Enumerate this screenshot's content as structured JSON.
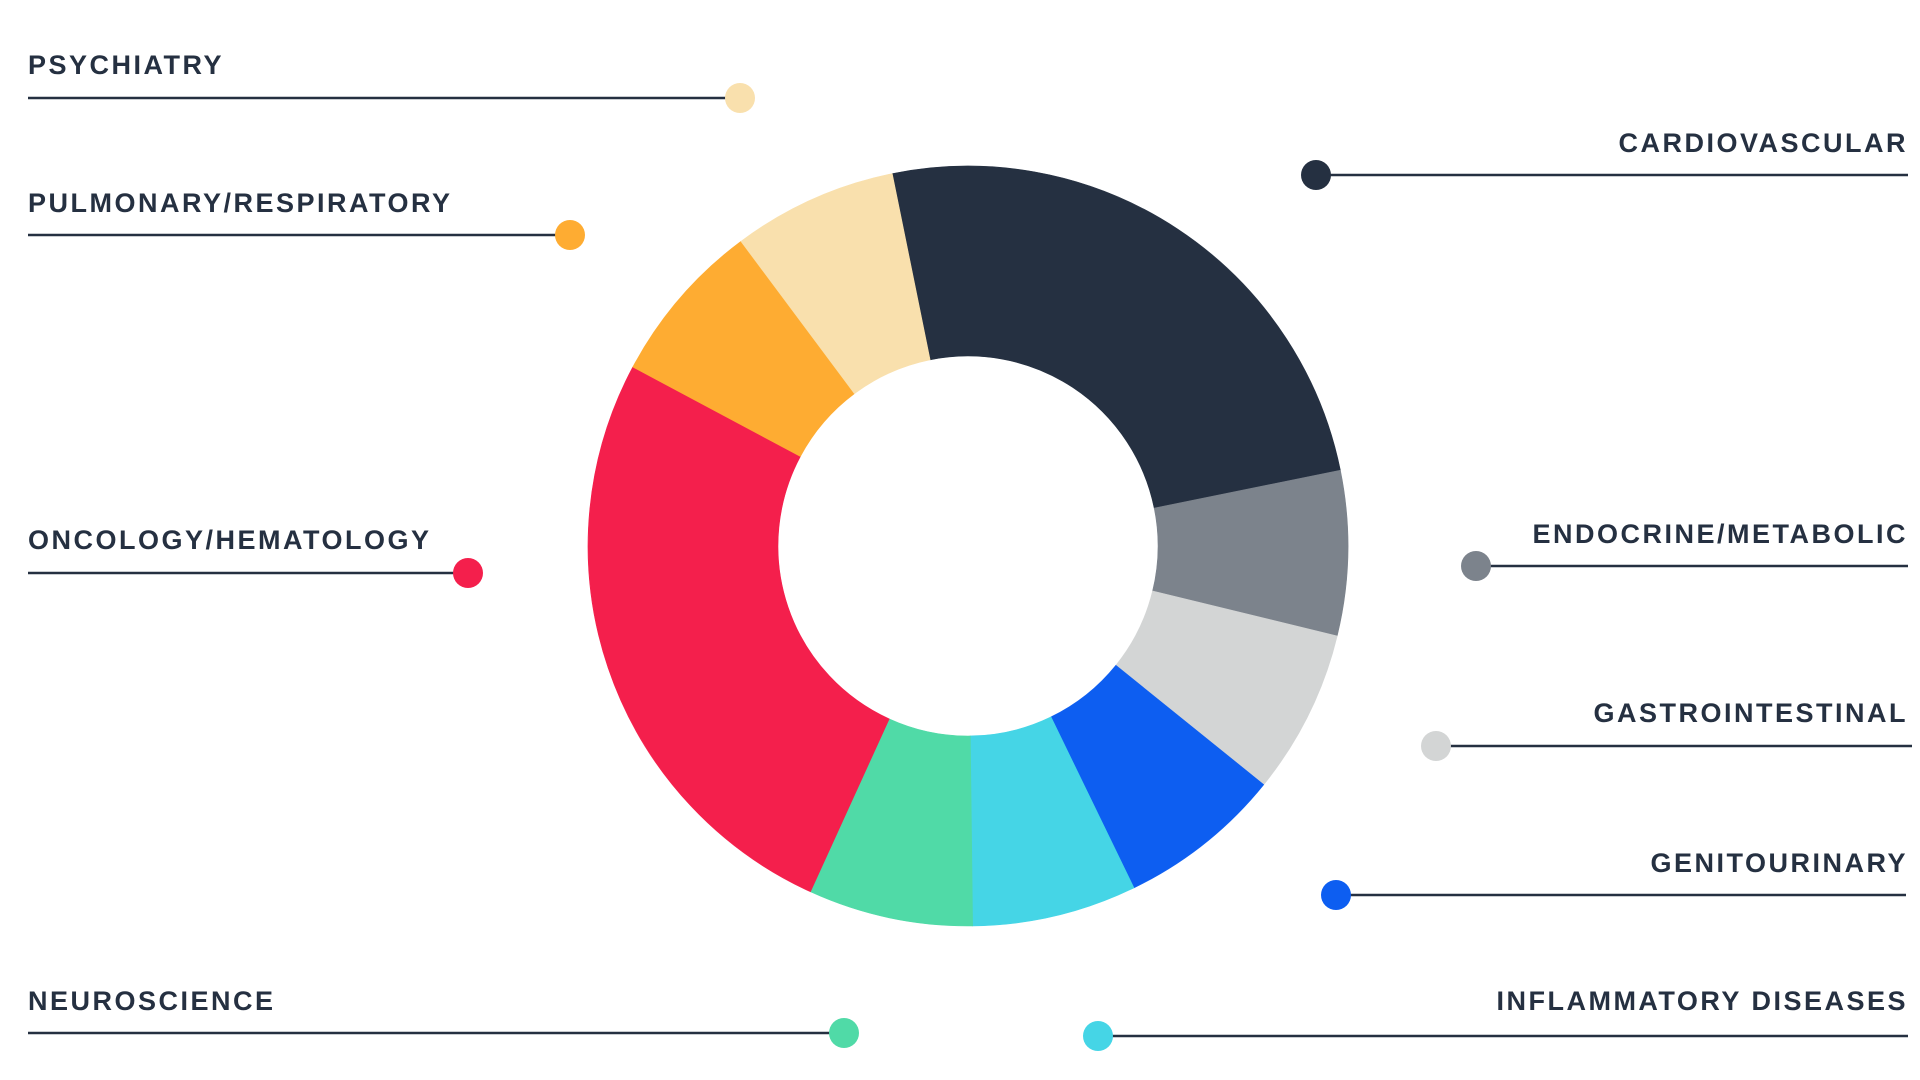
{
  "chart_data": {
    "type": "pie",
    "donut": true,
    "title": "",
    "legend_placement": "callouts",
    "slices": [
      {
        "label": "CARDIOVASCULAR",
        "value": 25,
        "color": "#253041",
        "side": "right"
      },
      {
        "label": "ENDOCRINE/METABOLIC",
        "value": 7,
        "color": "#7c838c",
        "side": "right"
      },
      {
        "label": "GASTROINTESTINAL",
        "value": 7,
        "color": "#d3d5d5",
        "side": "right"
      },
      {
        "label": "GENITOURINARY",
        "value": 7,
        "color": "#0d5ef1",
        "side": "right"
      },
      {
        "label": "INFLAMMATORY DISEASES",
        "value": 7,
        "color": "#45d5e6",
        "side": "right"
      },
      {
        "label": "NEUROSCIENCE",
        "value": 7,
        "color": "#50daa7",
        "side": "left"
      },
      {
        "label": "ONCOLOGY/HEMATOLOGY",
        "value": 26,
        "color": "#f41f4c",
        "side": "left"
      },
      {
        "label": "PULMONARY/RESPIRATORY",
        "value": 7,
        "color": "#feac32",
        "side": "left"
      },
      {
        "label": "PSYCHIATRY",
        "value": 7,
        "color": "#f9e0ad",
        "side": "left"
      }
    ]
  },
  "line_color": "#253041"
}
